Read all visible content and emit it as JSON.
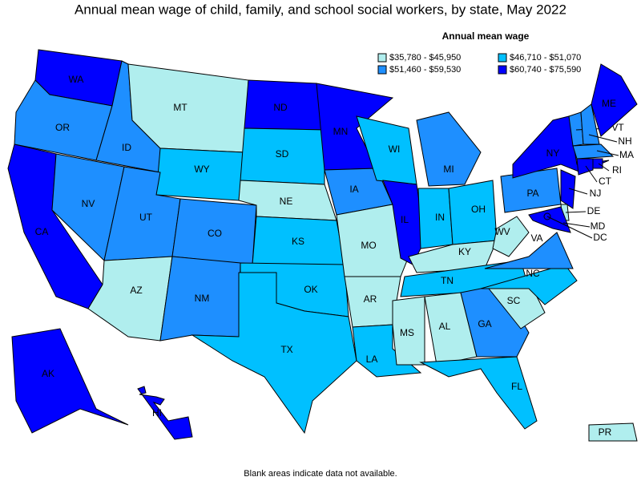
{
  "title": "Annual mean wage of child, family, and school social workers, by state, May 2022",
  "legend": {
    "title": "Annual mean wage",
    "items": [
      {
        "label": "$35,780 - $45,950",
        "color": "#b0eeee"
      },
      {
        "label": "$46,710 - $51,070",
        "color": "#00c0ff"
      },
      {
        "label": "$51,460 - $59,530",
        "color": "#1e8fff"
      },
      {
        "label": "$60,740 - $75,590",
        "color": "#0000ff"
      }
    ]
  },
  "states": [
    {
      "label": "WA",
      "color": "#0000ff"
    },
    {
      "label": "OR",
      "color": "#1e8fff"
    },
    {
      "label": "CA",
      "color": "#0000ff"
    },
    {
      "label": "NV",
      "color": "#1e8fff"
    },
    {
      "label": "ID",
      "color": "#1e8fff"
    },
    {
      "label": "MT",
      "color": "#b0eeee"
    },
    {
      "label": "WY",
      "color": "#00c0ff"
    },
    {
      "label": "UT",
      "color": "#1e8fff"
    },
    {
      "label": "AZ",
      "color": "#b0eeee"
    },
    {
      "label": "CO",
      "color": "#1e8fff"
    },
    {
      "label": "NM",
      "color": "#1e8fff"
    },
    {
      "label": "ND",
      "color": "#0000ff"
    },
    {
      "label": "SD",
      "color": "#00c0ff"
    },
    {
      "label": "NE",
      "color": "#b0eeee"
    },
    {
      "label": "KS",
      "color": "#00c0ff"
    },
    {
      "label": "OK",
      "color": "#00c0ff"
    },
    {
      "label": "TX",
      "color": "#00c0ff"
    },
    {
      "label": "MN",
      "color": "#0000ff"
    },
    {
      "label": "IA",
      "color": "#1e8fff"
    },
    {
      "label": "MO",
      "color": "#b0eeee"
    },
    {
      "label": "AR",
      "color": "#b0eeee"
    },
    {
      "label": "LA",
      "color": "#00c0ff"
    },
    {
      "label": "WI",
      "color": "#00c0ff"
    },
    {
      "label": "IL",
      "color": "#0000ff"
    },
    {
      "label": "MI",
      "color": "#1e8fff"
    },
    {
      "label": "IN",
      "color": "#00c0ff"
    },
    {
      "label": "OH",
      "color": "#00c0ff"
    },
    {
      "label": "KY",
      "color": "#b0eeee"
    },
    {
      "label": "TN",
      "color": "#00c0ff"
    },
    {
      "label": "MS",
      "color": "#b0eeee"
    },
    {
      "label": "AL",
      "color": "#b0eeee"
    },
    {
      "label": "GA",
      "color": "#1e8fff"
    },
    {
      "label": "FL",
      "color": "#00c0ff"
    },
    {
      "label": "SC",
      "color": "#b0eeee"
    },
    {
      "label": "NC",
      "color": "#00c0ff"
    },
    {
      "label": "VA",
      "color": "#1e8fff"
    },
    {
      "label": "WV",
      "color": "#b0eeee"
    },
    {
      "label": "PA",
      "color": "#1e8fff"
    },
    {
      "label": "NY",
      "color": "#0000ff"
    },
    {
      "label": "VT",
      "color": "#1e8fff"
    },
    {
      "label": "NH",
      "color": "#1e8fff"
    },
    {
      "label": "ME",
      "color": "#0000ff"
    },
    {
      "label": "MA",
      "color": "#1e8fff"
    },
    {
      "label": "RI",
      "color": "#0000ff"
    },
    {
      "label": "CT",
      "color": "#0000ff"
    },
    {
      "label": "NJ",
      "color": "#0000ff"
    },
    {
      "label": "DE",
      "color": "#b0eeee"
    },
    {
      "label": "MD",
      "color": "#0000ff"
    },
    {
      "label": "DC",
      "color": "#0000ff"
    },
    {
      "label": "AK",
      "color": "#0000ff"
    },
    {
      "label": "HI",
      "color": "#0000ff"
    },
    {
      "label": "PR",
      "color": "#b0eeee"
    }
  ],
  "footnote": "Blank areas indicate data not available."
}
